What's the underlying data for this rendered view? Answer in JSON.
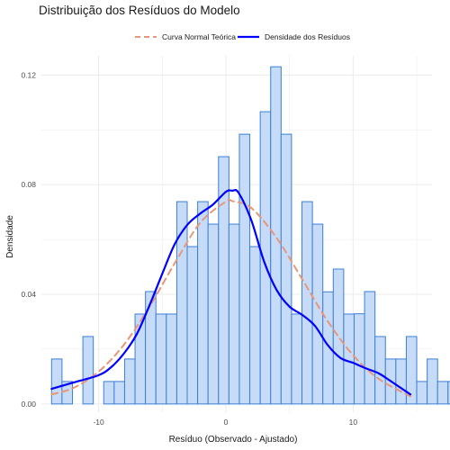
{
  "chart_data": {
    "type": "bar",
    "title": "Distribuição dos Resíduos do Modelo",
    "xlabel": "Resíduo (Observado - Ajustado)",
    "ylabel": "Densidade",
    "xlim": [
      -14.5,
      16.2
    ],
    "ylim": [
      -0.003,
      0.127
    ],
    "x_ticks": [
      -10,
      0,
      10
    ],
    "x_tick_labels": [
      "-10",
      "0",
      "10"
    ],
    "y_ticks": [
      0,
      0.04,
      0.08,
      0.12
    ],
    "y_tick_labels": [
      "0.00",
      "0.04",
      "0.08",
      "0.12"
    ],
    "grid": true,
    "legend_position": "top",
    "histogram": {
      "bin_width": 0.82,
      "bin_start": -13.7,
      "density": [
        0.0164,
        0.0082,
        0.0,
        0.0246,
        0.0,
        0.0082,
        0.0082,
        0.0164,
        0.0328,
        0.041,
        0.0328,
        0.0328,
        0.0738,
        0.0574,
        0.0738,
        0.0656,
        0.0902,
        0.0656,
        0.0984,
        0.0574,
        0.1066,
        0.123,
        0.0984,
        0.0328,
        0.0738,
        0.0656,
        0.0409,
        0.0492,
        0.0328,
        0.0329,
        0.041,
        0.0246,
        0.0164,
        0.0164,
        0.0246,
        0.0082,
        0.0164,
        0.0082,
        0.0082,
        0.0,
        0.0082
      ]
    },
    "series": [
      {
        "name": "Curva Normal Teórica",
        "style": "dashed",
        "x": [
          -13.7,
          -12,
          -10,
          -8,
          -6,
          -4,
          -2,
          0,
          0.5,
          2,
          4,
          6,
          8,
          10,
          12,
          14.5
        ],
        "y": [
          0.0035,
          0.0058,
          0.0118,
          0.0217,
          0.0355,
          0.0515,
          0.0662,
          0.0738,
          0.074,
          0.0715,
          0.0605,
          0.0455,
          0.0302,
          0.0178,
          0.0092,
          0.0028
        ]
      },
      {
        "name": "Densidade dos Resíduos",
        "style": "solid",
        "x": [
          -13.7,
          -12,
          -10,
          -9,
          -8,
          -7,
          -6,
          -5,
          -4,
          -3,
          -2,
          -1,
          0,
          0.5,
          1,
          2,
          3,
          4,
          5,
          6,
          7,
          8,
          9,
          10,
          11,
          12,
          13,
          14.5
        ],
        "y": [
          0.0055,
          0.0078,
          0.0105,
          0.0135,
          0.0185,
          0.0255,
          0.036,
          0.0475,
          0.0585,
          0.0655,
          0.0695,
          0.0728,
          0.0774,
          0.0778,
          0.077,
          0.067,
          0.052,
          0.0415,
          0.0355,
          0.0325,
          0.0285,
          0.0215,
          0.0168,
          0.015,
          0.013,
          0.0112,
          0.0082,
          0.0035
        ]
      }
    ],
    "colors": {
      "normal_curve": "#e9967a",
      "density_curve": "#0000ff",
      "bar_fill": "#c6dbf7",
      "bar_stroke": "#3c7fd6",
      "grid": "#ebebeb"
    }
  }
}
